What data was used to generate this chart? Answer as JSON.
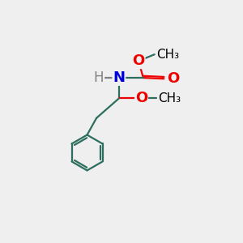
{
  "bg_color": "#efefef",
  "bond_color": "#2d6e5e",
  "N_color": "#0000dd",
  "O_color": "#ee0000",
  "H_color": "#808080",
  "bond_width": 1.6,
  "font_size_atom": 13,
  "font_size_methyl": 11,
  "fig_size": [
    3.0,
    3.0
  ],
  "dpi": 100,
  "xlim": [
    0,
    10
  ],
  "ylim": [
    0,
    10
  ]
}
